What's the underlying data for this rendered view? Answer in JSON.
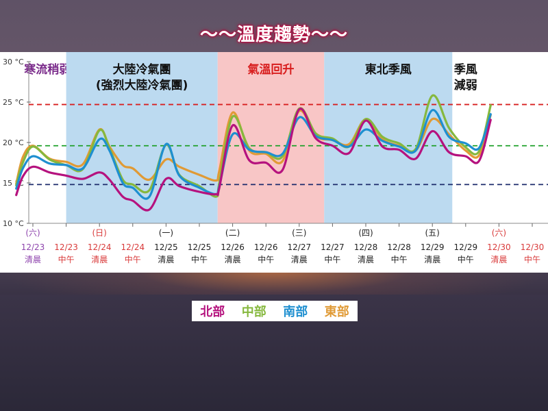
{
  "title": "～～溫度趨勢～～",
  "legend": [
    {
      "label": "北部",
      "color": "#b5127e"
    },
    {
      "label": "中部",
      "color": "#86b83e"
    },
    {
      "label": "南部",
      "color": "#1e8fd0"
    },
    {
      "label": "東部",
      "color": "#e09a35"
    }
  ],
  "chart_data": {
    "type": "line",
    "ylim": [
      10,
      30
    ],
    "yticks": [
      "30 °C",
      "25 °C",
      "20 °C",
      "15 °C",
      "10 °C"
    ],
    "ytick_values": [
      30,
      25,
      20,
      15,
      10
    ],
    "x": [
      {
        "day": "(六)",
        "date": "12/23",
        "time": "清晨",
        "color": "#8e44ad"
      },
      {
        "day": "",
        "date": "12/23",
        "time": "中午",
        "color": "#d93a3a"
      },
      {
        "day": "(日)",
        "date": "12/24",
        "time": "清晨",
        "color": "#d93a3a"
      },
      {
        "day": "",
        "date": "12/24",
        "time": "中午",
        "color": "#d93a3a"
      },
      {
        "day": "(一)",
        "date": "12/25",
        "time": "清晨",
        "color": "#222222"
      },
      {
        "day": "",
        "date": "12/25",
        "time": "中午",
        "color": "#222222"
      },
      {
        "day": "(二)",
        "date": "12/26",
        "time": "清晨",
        "color": "#222222"
      },
      {
        "day": "",
        "date": "12/26",
        "time": "中午",
        "color": "#222222"
      },
      {
        "day": "(三)",
        "date": "12/27",
        "time": "清晨",
        "color": "#222222"
      },
      {
        "day": "",
        "date": "12/27",
        "time": "中午",
        "color": "#222222"
      },
      {
        "day": "(四)",
        "date": "12/28",
        "time": "清晨",
        "color": "#222222"
      },
      {
        "day": "",
        "date": "12/28",
        "time": "中午",
        "color": "#222222"
      },
      {
        "day": "(五)",
        "date": "12/29",
        "time": "清晨",
        "color": "#222222"
      },
      {
        "day": "",
        "date": "12/29",
        "time": "中午",
        "color": "#222222"
      },
      {
        "day": "(六)",
        "date": "12/30",
        "time": "清晨",
        "color": "#d93a3a"
      },
      {
        "day": "",
        "date": "12/30",
        "time": "中午",
        "color": "#d93a3a"
      }
    ],
    "reference_lines": [
      {
        "value": 24.7,
        "color": "#d82020"
      },
      {
        "value": 19.6,
        "color": "#1fa02a"
      },
      {
        "value": 14.8,
        "color": "#1b2a6b"
      }
    ],
    "regions": [
      {
        "from": -0.5,
        "to": 1.0,
        "color": "#ffffff",
        "lines": [
          "寒流稍弱"
        ],
        "text_color": "#7a2a8a"
      },
      {
        "from": 1.0,
        "to": 5.55,
        "color": "#bcdaf0",
        "lines": [
          "大陸冷氣團",
          "(強烈大陸冷氣團)"
        ],
        "text_color": "#111111"
      },
      {
        "from": 5.55,
        "to": 8.75,
        "color": "#f8c6c6",
        "lines": [
          "氣溫回升"
        ],
        "text_color": "#d81e1e"
      },
      {
        "from": 8.75,
        "to": 12.6,
        "color": "#bcdaf0",
        "lines": [
          "東北季風"
        ],
        "text_color": "#111111"
      },
      {
        "from": 12.6,
        "to": 13.4,
        "color": "#ffffff",
        "lines": [
          "季風",
          "減弱"
        ],
        "text_color": "#111111"
      }
    ],
    "series": [
      {
        "name": "北部",
        "color": "#b5127e",
        "points": [
          [
            -0.5,
            13.5
          ],
          [
            -0.3,
            15.8
          ],
          [
            0,
            17.0
          ],
          [
            0.5,
            16.3
          ],
          [
            1,
            15.9
          ],
          [
            1.5,
            15.5
          ],
          [
            2,
            16.3
          ],
          [
            2.3,
            15.4
          ],
          [
            2.7,
            13.3
          ],
          [
            3,
            12.8
          ],
          [
            3.5,
            11.7
          ],
          [
            4,
            15.5
          ],
          [
            4.4,
            14.6
          ],
          [
            5,
            13.9
          ],
          [
            5.5,
            13.6
          ],
          [
            5.6,
            14.4
          ],
          [
            6,
            22.1
          ],
          [
            6.5,
            17.8
          ],
          [
            7,
            17.5
          ],
          [
            7.5,
            16.6
          ],
          [
            8,
            24.1
          ],
          [
            8.5,
            20.5
          ],
          [
            9,
            19.6
          ],
          [
            9.5,
            18.7
          ],
          [
            10,
            22.7
          ],
          [
            10.5,
            19.5
          ],
          [
            11,
            19.1
          ],
          [
            11.5,
            18.0
          ],
          [
            12,
            21.4
          ],
          [
            12.5,
            18.8
          ],
          [
            13,
            18.3
          ],
          [
            13.4,
            17.7
          ],
          [
            13.75,
            22.8
          ]
        ]
      },
      {
        "name": "中部",
        "color": "#86b83e",
        "points": [
          [
            -0.5,
            14.7
          ],
          [
            -0.3,
            17.5
          ],
          [
            0,
            19.5
          ],
          [
            0.5,
            17.9
          ],
          [
            1,
            17.2
          ],
          [
            1.5,
            16.7
          ],
          [
            2,
            21.5
          ],
          [
            2.3,
            19.3
          ],
          [
            2.7,
            15.4
          ],
          [
            3,
            14.8
          ],
          [
            3.5,
            14.1
          ],
          [
            4,
            19.7
          ],
          [
            4.4,
            16.0
          ],
          [
            5,
            14.6
          ],
          [
            5.5,
            13.3
          ],
          [
            5.6,
            15.0
          ],
          [
            6,
            23.2
          ],
          [
            6.5,
            19.3
          ],
          [
            7,
            18.8
          ],
          [
            7.5,
            18.3
          ],
          [
            8,
            24.2
          ],
          [
            8.5,
            21.1
          ],
          [
            9,
            20.5
          ],
          [
            9.5,
            19.5
          ],
          [
            10,
            22.9
          ],
          [
            10.5,
            20.7
          ],
          [
            11,
            19.9
          ],
          [
            11.5,
            19.2
          ],
          [
            12,
            25.8
          ],
          [
            12.5,
            21.8
          ],
          [
            13,
            19.4
          ],
          [
            13.4,
            18.9
          ],
          [
            13.75,
            24.6
          ]
        ]
      },
      {
        "name": "南部",
        "color": "#1e8fd0",
        "points": [
          [
            -0.5,
            14.3
          ],
          [
            -0.3,
            16.8
          ],
          [
            0,
            18.3
          ],
          [
            0.5,
            17.4
          ],
          [
            1,
            17.2
          ],
          [
            1.5,
            16.8
          ],
          [
            2,
            20.4
          ],
          [
            2.3,
            19.0
          ],
          [
            2.7,
            15.0
          ],
          [
            3,
            14.4
          ],
          [
            3.5,
            13.3
          ],
          [
            4,
            19.8
          ],
          [
            4.4,
            15.9
          ],
          [
            5,
            14.4
          ],
          [
            5.5,
            13.6
          ],
          [
            5.6,
            14.6
          ],
          [
            6,
            21.0
          ],
          [
            6.5,
            19.1
          ],
          [
            7,
            18.8
          ],
          [
            7.5,
            18.6
          ],
          [
            8,
            23.1
          ],
          [
            8.5,
            20.8
          ],
          [
            9,
            20.3
          ],
          [
            9.5,
            19.5
          ],
          [
            10,
            21.6
          ],
          [
            10.5,
            20.2
          ],
          [
            11,
            19.5
          ],
          [
            11.5,
            19.0
          ],
          [
            12,
            24.0
          ],
          [
            12.5,
            20.7
          ],
          [
            13,
            19.9
          ],
          [
            13.4,
            19.3
          ],
          [
            13.75,
            23.5
          ]
        ]
      },
      {
        "name": "東部",
        "color": "#e09a35",
        "points": [
          [
            -0.5,
            14.9
          ],
          [
            -0.3,
            18.2
          ],
          [
            0,
            19.6
          ],
          [
            0.5,
            18.0
          ],
          [
            1,
            17.6
          ],
          [
            1.5,
            17.3
          ],
          [
            2,
            21.6
          ],
          [
            2.3,
            19.5
          ],
          [
            2.7,
            17.2
          ],
          [
            3,
            16.8
          ],
          [
            3.5,
            15.4
          ],
          [
            4,
            17.9
          ],
          [
            4.4,
            17.0
          ],
          [
            5,
            16.0
          ],
          [
            5.5,
            15.3
          ],
          [
            5.6,
            16.5
          ],
          [
            6,
            23.7
          ],
          [
            6.5,
            19.0
          ],
          [
            7,
            18.6
          ],
          [
            7.5,
            17.7
          ],
          [
            8,
            23.9
          ],
          [
            8.5,
            20.8
          ],
          [
            9,
            20.3
          ],
          [
            9.5,
            19.8
          ],
          [
            10,
            22.9
          ],
          [
            10.5,
            20.4
          ],
          [
            11,
            19.6
          ],
          [
            11.5,
            19.0
          ],
          [
            12,
            22.9
          ],
          [
            12.5,
            21.0
          ],
          [
            13,
            19.0
          ],
          [
            13.4,
            18.4
          ],
          [
            13.75,
            23.4
          ]
        ]
      }
    ]
  }
}
